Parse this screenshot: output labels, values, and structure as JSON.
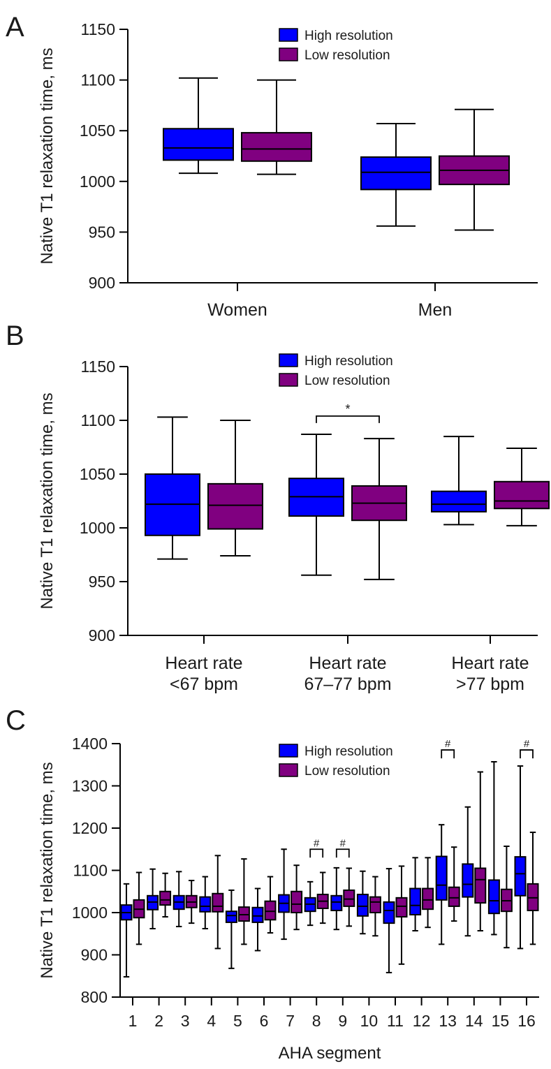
{
  "colors": {
    "high": "#0000ff",
    "low": "#800080",
    "axis": "#000000"
  },
  "chart_data": [
    {
      "type": "box",
      "panel_label": "A",
      "ylabel": "Native T1 relaxation time, ms",
      "ylim": [
        900,
        1150
      ],
      "yticks": [
        "1150",
        "1100",
        "1050",
        "1000",
        "950",
        "900"
      ],
      "legend": [
        "High resolution",
        "Low resolution"
      ],
      "categories": [
        "Women",
        "Men"
      ],
      "series": [
        {
          "name": "High resolution",
          "boxes": [
            {
              "min": 1008,
              "q1": 1021,
              "median": 1033,
              "q3": 1052,
              "max": 1102
            },
            {
              "min": 956,
              "q1": 992,
              "median": 1009,
              "q3": 1024,
              "max": 1057
            }
          ]
        },
        {
          "name": "Low resolution",
          "boxes": [
            {
              "min": 1007,
              "q1": 1020,
              "median": 1032,
              "q3": 1048,
              "max": 1100
            },
            {
              "min": 952,
              "q1": 997,
              "median": 1011,
              "q3": 1025,
              "max": 1071
            }
          ]
        }
      ],
      "annotations": []
    },
    {
      "type": "box",
      "panel_label": "B",
      "ylabel": "Native T1 relaxation time, ms",
      "ylim": [
        900,
        1150
      ],
      "yticks": [
        "1150",
        "1100",
        "1050",
        "1000",
        "950",
        "900"
      ],
      "legend": [
        "High resolution",
        "Low resolution"
      ],
      "categories": [
        "Heart rate\n<67 bpm",
        "Heart rate\n67–77 bpm",
        "Heart rate\n>77 bpm"
      ],
      "series": [
        {
          "name": "High resolution",
          "boxes": [
            {
              "min": 971,
              "q1": 993,
              "median": 1022,
              "q3": 1050,
              "max": 1103
            },
            {
              "min": 956,
              "q1": 1011,
              "median": 1029,
              "q3": 1046,
              "max": 1087
            },
            {
              "min": 1003,
              "q1": 1015,
              "median": 1022,
              "q3": 1034,
              "max": 1085
            }
          ]
        },
        {
          "name": "Low resolution",
          "boxes": [
            {
              "min": 974,
              "q1": 999,
              "median": 1021,
              "q3": 1041,
              "max": 1100
            },
            {
              "min": 952,
              "q1": 1007,
              "median": 1023,
              "q3": 1039,
              "max": 1083
            },
            {
              "min": 1002,
              "q1": 1018,
              "median": 1025,
              "q3": 1043,
              "max": 1074
            }
          ]
        }
      ],
      "annotations": [
        {
          "category": 1,
          "symbol": "*",
          "value": 1104
        }
      ]
    },
    {
      "type": "box",
      "panel_label": "C",
      "ylabel": "Native T1 relaxation time, ms",
      "xlabel": "AHA segment",
      "ylim": [
        800,
        1400
      ],
      "yticks": [
        "1400",
        "1300",
        "1200",
        "1100",
        "1000",
        "900",
        "800"
      ],
      "legend": [
        "High resolution",
        "Low resolution"
      ],
      "categories": [
        "1",
        "2",
        "3",
        "4",
        "5",
        "6",
        "7",
        "8",
        "9",
        "10",
        "11",
        "12",
        "13",
        "14",
        "15",
        "16"
      ],
      "series": [
        {
          "name": "High resolution",
          "boxes": [
            {
              "min": 848,
              "q1": 983,
              "median": 1000,
              "q3": 1018,
              "max": 1068
            },
            {
              "min": 962,
              "q1": 1007,
              "median": 1025,
              "q3": 1040,
              "max": 1103
            },
            {
              "min": 967,
              "q1": 1008,
              "median": 1025,
              "q3": 1040,
              "max": 1097
            },
            {
              "min": 962,
              "q1": 1002,
              "median": 1015,
              "q3": 1037,
              "max": 1085
            },
            {
              "min": 868,
              "q1": 977,
              "median": 993,
              "q3": 1003,
              "max": 1053
            },
            {
              "min": 910,
              "q1": 977,
              "median": 992,
              "q3": 1012,
              "max": 1057
            },
            {
              "min": 937,
              "q1": 1001,
              "median": 1022,
              "q3": 1042,
              "max": 1150
            },
            {
              "min": 970,
              "q1": 1003,
              "median": 1020,
              "q3": 1035,
              "max": 1073
            },
            {
              "min": 960,
              "q1": 1005,
              "median": 1025,
              "q3": 1040,
              "max": 1106
            },
            {
              "min": 950,
              "q1": 992,
              "median": 1015,
              "q3": 1043,
              "max": 1098
            },
            {
              "min": 858,
              "q1": 975,
              "median": 1005,
              "q3": 1025,
              "max": 1104
            },
            {
              "min": 957,
              "q1": 995,
              "median": 1017,
              "q3": 1057,
              "max": 1130
            },
            {
              "min": 925,
              "q1": 1030,
              "median": 1065,
              "q3": 1133,
              "max": 1208
            },
            {
              "min": 945,
              "q1": 1037,
              "median": 1067,
              "q3": 1115,
              "max": 1250
            },
            {
              "min": 948,
              "q1": 998,
              "median": 1028,
              "q3": 1077,
              "max": 1357
            },
            {
              "min": 915,
              "q1": 1040,
              "median": 1092,
              "q3": 1132,
              "max": 1347
            }
          ]
        },
        {
          "name": "Low resolution",
          "boxes": [
            {
              "min": 925,
              "q1": 988,
              "median": 1008,
              "q3": 1030,
              "max": 1095
            },
            {
              "min": 990,
              "q1": 1018,
              "median": 1030,
              "q3": 1050,
              "max": 1093
            },
            {
              "min": 975,
              "q1": 1012,
              "median": 1025,
              "q3": 1040,
              "max": 1076
            },
            {
              "min": 915,
              "q1": 1002,
              "median": 1015,
              "q3": 1045,
              "max": 1135
            },
            {
              "min": 925,
              "q1": 980,
              "median": 995,
              "q3": 1013,
              "max": 1127
            },
            {
              "min": 952,
              "q1": 983,
              "median": 1003,
              "q3": 1027,
              "max": 1085
            },
            {
              "min": 960,
              "q1": 1000,
              "median": 1020,
              "q3": 1050,
              "max": 1112
            },
            {
              "min": 975,
              "q1": 1010,
              "median": 1027,
              "q3": 1043,
              "max": 1095
            },
            {
              "min": 968,
              "q1": 1015,
              "median": 1032,
              "q3": 1053,
              "max": 1105
            },
            {
              "min": 945,
              "q1": 1000,
              "median": 1025,
              "q3": 1037,
              "max": 1085
            },
            {
              "min": 878,
              "q1": 990,
              "median": 1015,
              "q3": 1035,
              "max": 1110
            },
            {
              "min": 965,
              "q1": 1008,
              "median": 1030,
              "q3": 1057,
              "max": 1130
            },
            {
              "min": 980,
              "q1": 1015,
              "median": 1035,
              "q3": 1060,
              "max": 1155
            },
            {
              "min": 957,
              "q1": 1023,
              "median": 1078,
              "q3": 1105,
              "max": 1333
            },
            {
              "min": 917,
              "q1": 1003,
              "median": 1028,
              "q3": 1055,
              "max": 1157
            },
            {
              "min": 925,
              "q1": 1005,
              "median": 1035,
              "q3": 1068,
              "max": 1190
            }
          ]
        }
      ],
      "annotations": [
        {
          "category": 7,
          "symbol": "#",
          "value": 1150
        },
        {
          "category": 8,
          "symbol": "#",
          "value": 1150
        },
        {
          "category": 12,
          "symbol": "#",
          "value": 1385
        },
        {
          "category": 15,
          "symbol": "#",
          "value": 1385
        }
      ]
    }
  ]
}
